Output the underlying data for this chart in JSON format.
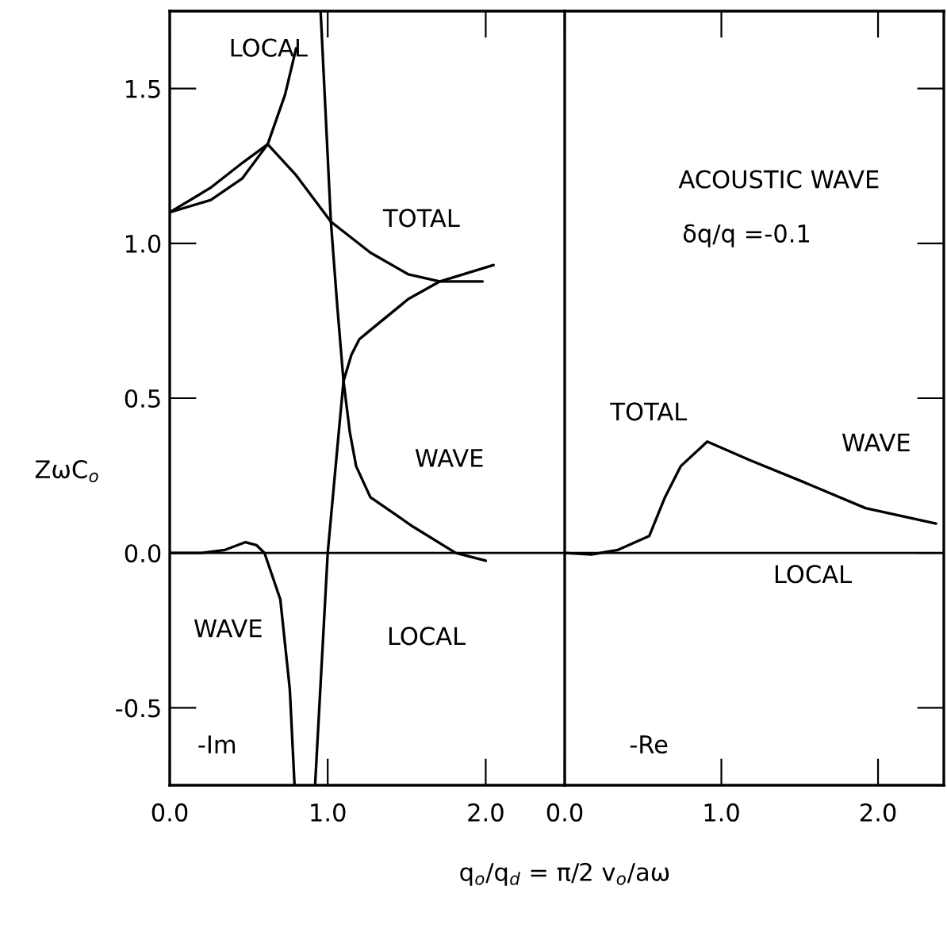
{
  "chart_data": [
    {
      "type": "line",
      "ylabel": "ZωC$_{o}$",
      "xlabel": "q$_{o}$/q$_{d}$ = π/2 v$_{o}$/aω",
      "xlim": [
        0,
        2.5
      ],
      "ylim": [
        -0.75,
        1.75
      ],
      "xticks": [
        {
          "value": 0,
          "label": "0.0"
        },
        {
          "value": 1,
          "label": "1.0"
        },
        {
          "value": 2,
          "label": "2.0"
        }
      ],
      "yticks": [
        {
          "value": -0.5,
          "label": "-0.5"
        },
        {
          "value": 0,
          "label": "0.0"
        },
        {
          "value": 0.5,
          "label": "0.5"
        },
        {
          "value": 1,
          "label": "1.0"
        },
        {
          "value": 1.5,
          "label": "1.5"
        }
      ],
      "grid": false,
      "marker": "none",
      "line_style": "solid",
      "ref_lines": [
        {
          "axis": "y",
          "value": 0,
          "color": "#000000"
        }
      ],
      "series": [
        {
          "color": "#000000",
          "x": [
            0,
            0.26,
            0.46,
            0.62,
            0.8,
            1.02,
            1.27,
            1.51,
            1.71,
            1.98
          ],
          "values": [
            1.1,
            1.18,
            1.26,
            1.32,
            1.22,
            1.07,
            0.97,
            0.9,
            0.877,
            0.877
          ]
        },
        {
          "color": "#000000",
          "x": [
            0,
            0.26,
            0.46,
            0.62,
            0.73,
            0.8
          ],
          "values": [
            1.1,
            1.14,
            1.21,
            1.32,
            1.48,
            1.63
          ]
        },
        {
          "color": "#000000",
          "x": [
            0.955,
            1.02,
            1.06,
            1.1,
            1.14,
            1.18,
            1.27,
            1.54,
            1.81,
            2.0
          ],
          "values": [
            1.75,
            1.07,
            0.8,
            0.555,
            0.39,
            0.28,
            0.18,
            0.085,
            0.0,
            -0.025
          ]
        },
        {
          "color": "#000000",
          "x": [
            0.92,
            1.0,
            1.07,
            1.1,
            1.15,
            1.2,
            1.27,
            1.51,
            1.71,
            2.05
          ],
          "values": [
            -0.75,
            0.0,
            0.39,
            0.555,
            0.64,
            0.69,
            0.72,
            0.82,
            0.877,
            0.93
          ]
        },
        {
          "color": "#000000",
          "x": [
            0,
            0.2,
            0.35,
            0.48,
            0.55,
            0.6,
            0.7,
            0.76,
            0.79
          ],
          "values": [
            0,
            0.0,
            0.01,
            0.035,
            0.025,
            0.0,
            -0.15,
            -0.44,
            -0.75
          ]
        }
      ],
      "annotations": [
        "LOCAL",
        "TOTAL",
        "WAVE",
        "WAVE",
        "LOCAL",
        "-Im"
      ]
    },
    {
      "type": "line",
      "xlim": [
        0,
        2.42
      ],
      "ylim": [
        -0.75,
        1.75
      ],
      "xticks": [
        {
          "value": 0,
          "label": "0.0"
        },
        {
          "value": 1,
          "label": "1.0"
        },
        {
          "value": 2,
          "label": "2.0"
        }
      ],
      "yticks": [
        {
          "value": -0.5,
          "label": null
        },
        {
          "value": 0,
          "label": null
        },
        {
          "value": 0.5,
          "label": null
        },
        {
          "value": 1,
          "label": null
        },
        {
          "value": 1.5,
          "label": null
        }
      ],
      "tick_labels": "x",
      "grid": false,
      "marker": "none",
      "line_style": "solid",
      "ref_lines": [
        {
          "axis": "y",
          "value": 0,
          "color": "#000000"
        }
      ],
      "series": [
        {
          "color": "#000000",
          "x": [
            0,
            0.17,
            0.34,
            0.54,
            0.64,
            0.74,
            0.91,
            1.18,
            1.52,
            1.92,
            2.37
          ],
          "values": [
            0,
            -0.005,
            0.01,
            0.055,
            0.18,
            0.28,
            0.36,
            0.3,
            0.23,
            0.145,
            0.095
          ]
        }
      ],
      "annotations": [
        "ACOUSTIC WAVE",
        "δq/q =-0.1",
        "TOTAL",
        "WAVE",
        "LOCAL",
        "-Re"
      ]
    }
  ]
}
